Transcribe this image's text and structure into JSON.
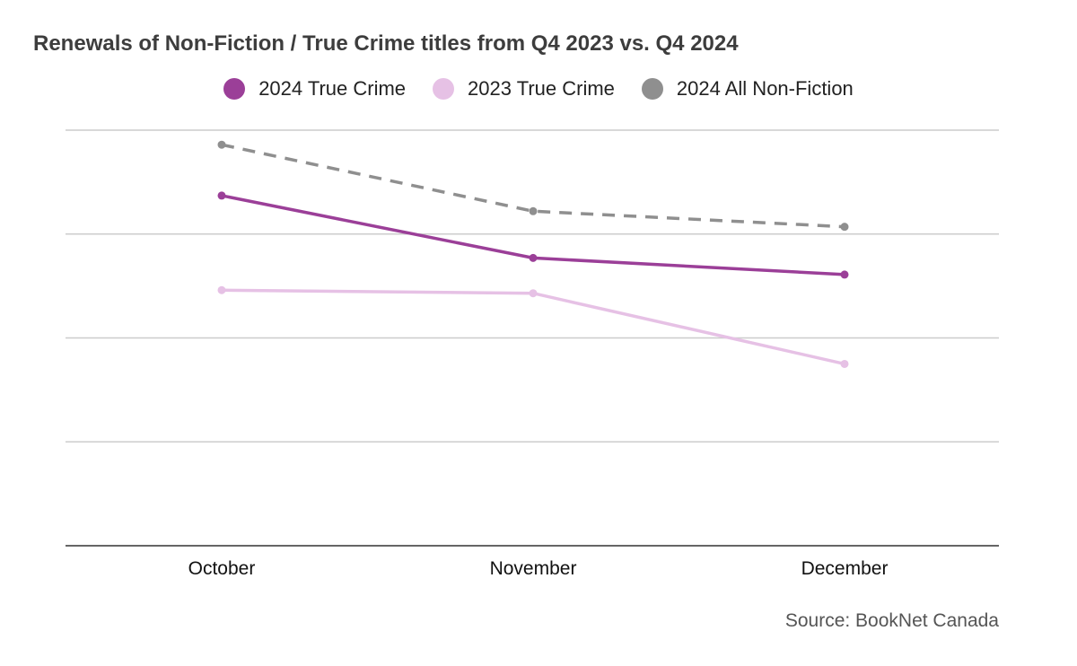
{
  "chart_data": {
    "type": "line",
    "title": "Renewals of Non-Fiction / True Crime titles from Q4 2023 vs. Q4 2024",
    "categories": [
      "October",
      "November",
      "December"
    ],
    "series": [
      {
        "name": "2024 True Crime",
        "values": [
          3.37,
          2.77,
          2.61
        ],
        "color": "#9b3f98",
        "style": "solid"
      },
      {
        "name": "2023 True Crime",
        "values": [
          2.46,
          2.43,
          1.75
        ],
        "color": "#e6c1e5",
        "style": "solid"
      },
      {
        "name": "2024 All Non-Fiction",
        "values": [
          3.86,
          3.22,
          3.07
        ],
        "color": "#8f8f8f",
        "style": "dashed"
      }
    ],
    "ylim": [
      0,
      4
    ],
    "grid": true,
    "legend_position": "top-center",
    "source": "Source: BookNet Canada"
  }
}
